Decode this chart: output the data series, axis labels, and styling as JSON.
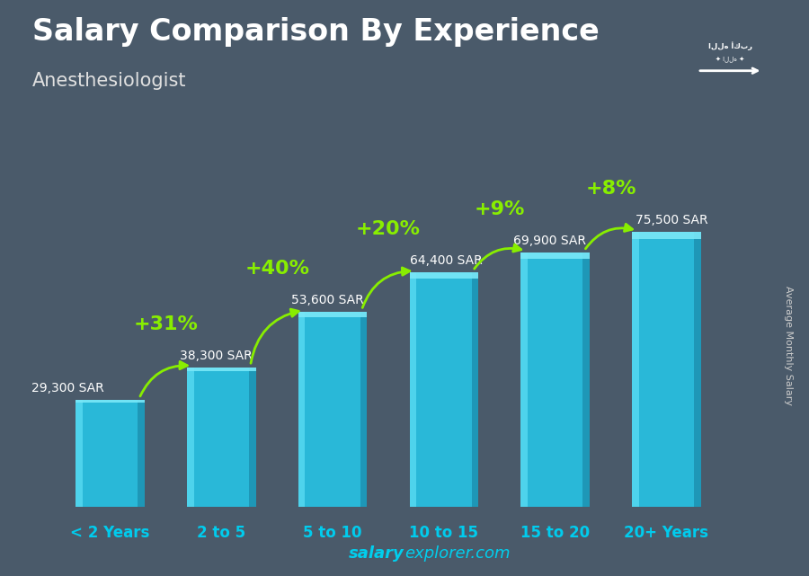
{
  "title": "Salary Comparison By Experience",
  "subtitle": "Anesthesiologist",
  "ylabel": "Average Monthly Salary",
  "footer_bold": "salary",
  "footer_normal": "explorer.com",
  "categories": [
    "< 2 Years",
    "2 to 5",
    "5 to 10",
    "10 to 15",
    "15 to 20",
    "20+ Years"
  ],
  "values": [
    29300,
    38300,
    53600,
    64400,
    69900,
    75500
  ],
  "value_labels": [
    "29,300 SAR",
    "38,300 SAR",
    "53,600 SAR",
    "64,400 SAR",
    "69,900 SAR",
    "75,500 SAR"
  ],
  "pct_changes": [
    null,
    "+31%",
    "+40%",
    "+20%",
    "+9%",
    "+8%"
  ],
  "bar_color_main": "#29b8d8",
  "bar_color_light": "#55d8f0",
  "bar_color_dark": "#1a8aaa",
  "bar_color_top": "#7ae8f8",
  "background_color": "#4a5a6a",
  "title_color": "#ffffff",
  "subtitle_color": "#e0e0e0",
  "label_color": "#ffffff",
  "value_label_color": "#ffffff",
  "pct_color": "#88ee00",
  "arrow_color": "#88ee00",
  "footer_color": "#00cfee",
  "ylabel_color": "#cccccc",
  "cat_label_color": "#00ccee",
  "bar_width": 0.62,
  "ylim": [
    0,
    95000
  ],
  "title_fontsize": 24,
  "subtitle_fontsize": 15,
  "value_fontsize": 10,
  "pct_fontsize": 16,
  "cat_fontsize": 12,
  "footer_fontsize": 13
}
